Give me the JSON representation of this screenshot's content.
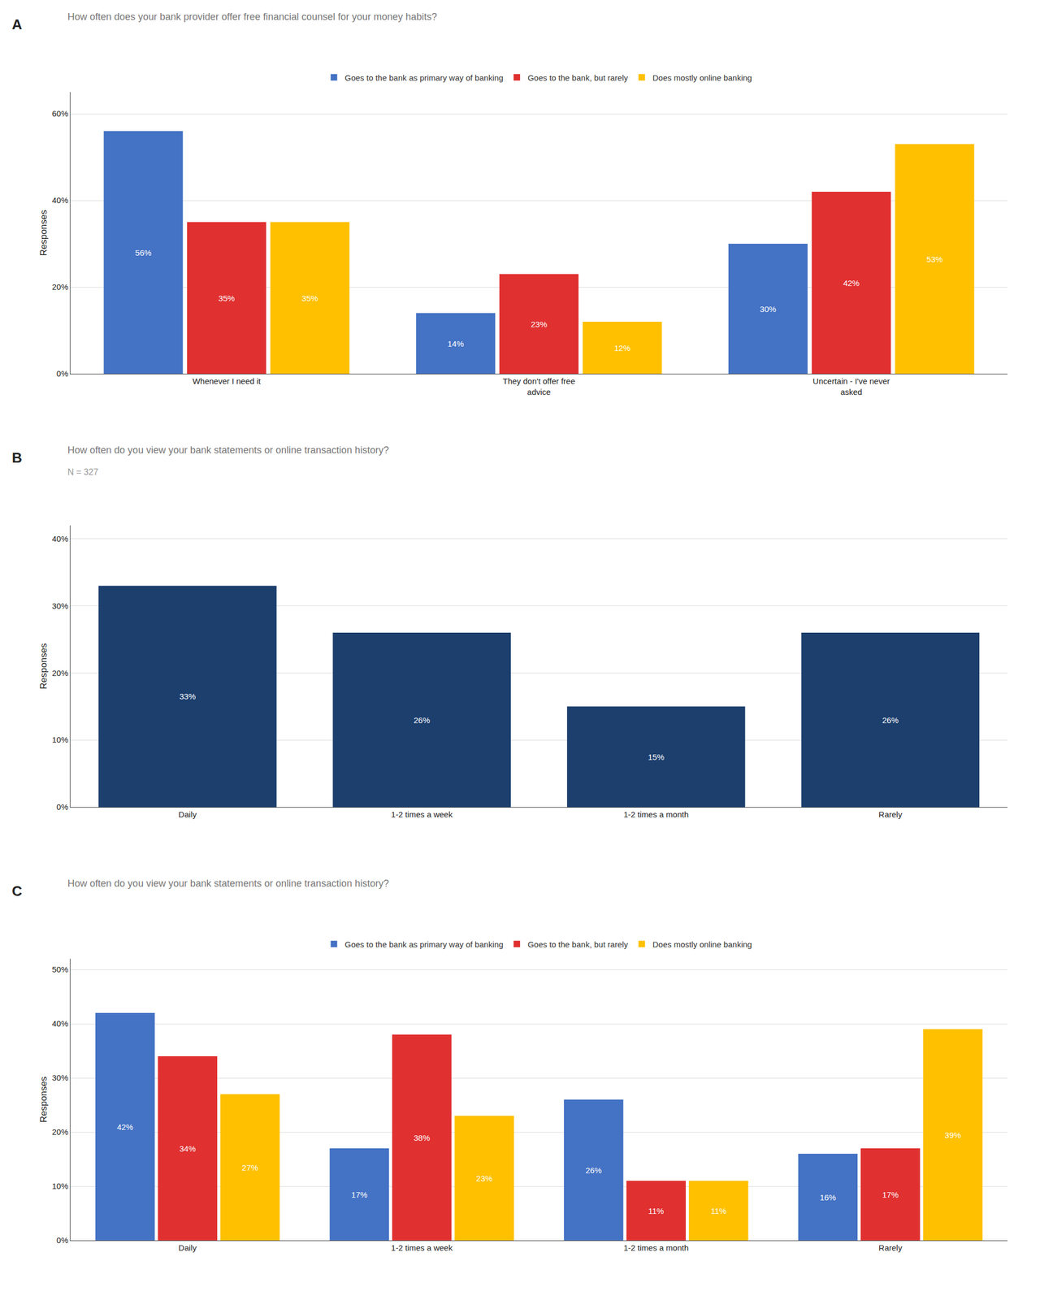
{
  "chart_data": [
    {
      "type": "bar",
      "annotations": [
        "A"
      ],
      "title": "How often does your bank provider offer free financial counsel for your money habits?",
      "ylabel": "Responses",
      "categories": [
        "Whenever I need it",
        "They don't offer free\nadvice",
        "Uncertain - I've never\nasked"
      ],
      "series": [
        {
          "name": "Goes to the bank as primary way of banking",
          "color": "#4472C4",
          "values": [
            56,
            14,
            30
          ],
          "value_labels": [
            "56%",
            "14%",
            "30%"
          ]
        },
        {
          "name": "Goes to the bank, but rarely",
          "color": "#E03030",
          "values": [
            35,
            23,
            42
          ],
          "value_labels": [
            "35%",
            "23%",
            "42%"
          ]
        },
        {
          "name": "Does mostly online banking",
          "color": "#FFC000",
          "values": [
            35,
            12,
            53
          ],
          "value_labels": [
            "35%",
            "12%",
            "53%"
          ]
        }
      ],
      "ylim": [
        0,
        65
      ],
      "yticks": [
        {
          "value": 0,
          "label": "0%"
        },
        {
          "value": 20,
          "label": "20%"
        },
        {
          "value": 40,
          "label": "40%"
        },
        {
          "value": 60,
          "label": "60%"
        }
      ],
      "grid": true,
      "legend": "top",
      "data_labels": true
    },
    {
      "type": "bar",
      "annotations": [
        "B"
      ],
      "title": "How often do you view your bank statements or online transaction history?",
      "subtitle": "N = 327",
      "ylabel": "Responses",
      "categories": [
        "Daily",
        "1-2 times a week",
        "1-2 times a month",
        "Rarely"
      ],
      "color": "#1C3F6E",
      "values": [
        33,
        26,
        15,
        26
      ],
      "value_labels": [
        "33%",
        "26%",
        "15%",
        "26%"
      ],
      "ylim": [
        0,
        42
      ],
      "yticks": [
        {
          "value": 0,
          "label": "0%"
        },
        {
          "value": 10,
          "label": "10%"
        },
        {
          "value": 20,
          "label": "20%"
        },
        {
          "value": 30,
          "label": "30%"
        },
        {
          "value": 40,
          "label": "40%"
        }
      ],
      "grid": true,
      "data_labels": true
    },
    {
      "type": "bar",
      "annotations": [
        "C"
      ],
      "title": "How often do you view your bank statements or online transaction history?",
      "ylabel": "Responses",
      "categories": [
        "Daily",
        "1-2 times a week",
        "1-2 times a month",
        "Rarely"
      ],
      "series": [
        {
          "name": "Goes to the bank as primary way of banking",
          "color": "#4472C4",
          "values": [
            42,
            17,
            26,
            16
          ],
          "value_labels": [
            "42%",
            "17%",
            "26%",
            "16%"
          ]
        },
        {
          "name": "Goes to the bank, but rarely",
          "color": "#E03030",
          "values": [
            34,
            38,
            11,
            17
          ],
          "value_labels": [
            "34%",
            "38%",
            "11%",
            "17%"
          ]
        },
        {
          "name": "Does mostly online banking",
          "color": "#FFC000",
          "values": [
            27,
            23,
            11,
            39
          ],
          "value_labels": [
            "27%",
            "23%",
            "11%",
            "39%"
          ]
        }
      ],
      "ylim": [
        0,
        52
      ],
      "yticks": [
        {
          "value": 0,
          "label": "0%"
        },
        {
          "value": 10,
          "label": "10%"
        },
        {
          "value": 20,
          "label": "20%"
        },
        {
          "value": 30,
          "label": "30%"
        },
        {
          "value": 40,
          "label": "40%"
        },
        {
          "value": 50,
          "label": "50%"
        }
      ],
      "grid": true,
      "legend": "top",
      "data_labels": true
    }
  ]
}
